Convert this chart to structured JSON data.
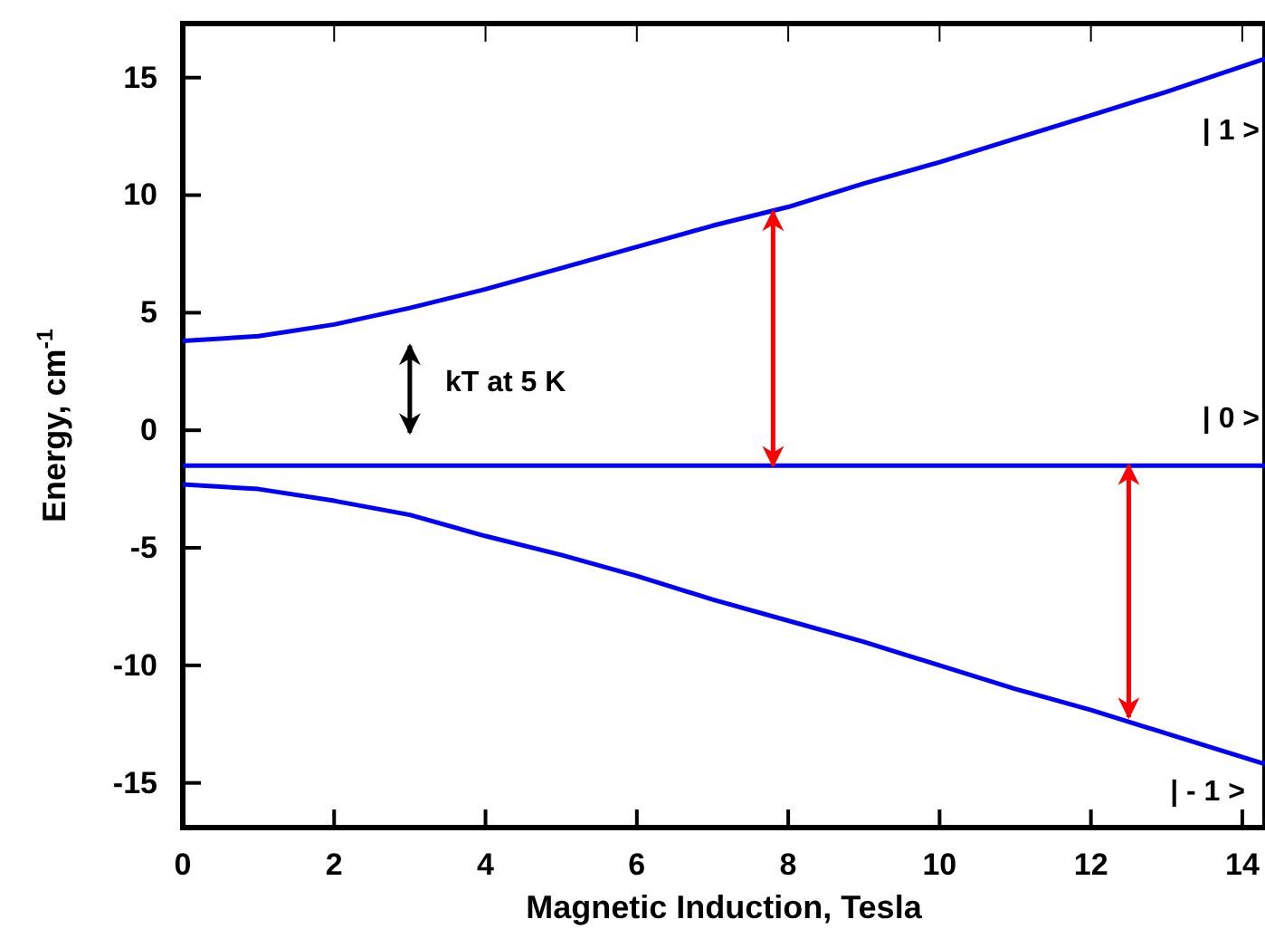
{
  "chart_data": {
    "type": "line",
    "xlabel": "Magnetic Induction, Tesla",
    "ylabel": "Energy, cm$^{-1}$",
    "xlim": [
      0,
      14.3
    ],
    "ylim": [
      -16.9,
      17.3
    ],
    "xticks": [
      0,
      2,
      4,
      6,
      8,
      10,
      12,
      14
    ],
    "yticks": [
      -15,
      -10,
      -5,
      0,
      5,
      10,
      15
    ],
    "grid": false,
    "line_style": "solid",
    "marker": "none",
    "series": [
      {
        "color": "#0000ff",
        "x": [
          0,
          1,
          2,
          3,
          4,
          5,
          6,
          7,
          8,
          9,
          10,
          11,
          12,
          13,
          14.3
        ],
        "values": [
          3.8,
          4.0,
          4.5,
          5.2,
          6.0,
          6.9,
          7.8,
          8.7,
          9.5,
          10.5,
          11.4,
          12.4,
          13.4,
          14.4,
          15.8
        ]
      },
      {
        "color": "#0000ff",
        "x": [
          0,
          14.3
        ],
        "values": [
          -1.5,
          -1.5
        ]
      },
      {
        "color": "#0000ff",
        "x": [
          0,
          1,
          2,
          3,
          4,
          5,
          6,
          7,
          8,
          9,
          10,
          11,
          12,
          13,
          14.3
        ],
        "values": [
          -2.3,
          -2.5,
          -3.0,
          -3.6,
          -4.5,
          -5.3,
          -6.2,
          -7.2,
          -8.1,
          -9.0,
          -10.0,
          -11.0,
          -11.9,
          -12.9,
          -14.2
        ]
      },
      {
        "color": "#ff0000",
        "x": [
          7.8,
          7.8
        ],
        "values": [
          -1.5,
          9.3
        ]
      },
      {
        "color": "#ff0000",
        "x": [
          12.5,
          12.5
        ],
        "values": [
          -1.5,
          -12.2
        ]
      },
      {
        "color": "#000000",
        "x": [
          3,
          3
        ],
        "values": [
          -0.1,
          3.6
        ]
      }
    ],
    "annotations": [
      "kT at 5 K",
      "| 1 >",
      "| 0 >",
      "| - 1 >"
    ]
  }
}
